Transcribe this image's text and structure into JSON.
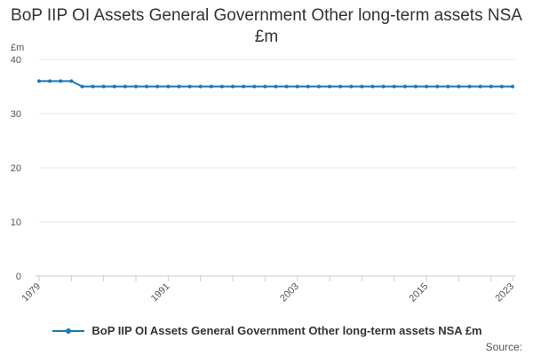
{
  "chart_data": {
    "type": "line",
    "title": "BoP IIP OI Assets General Government Other long-term assets NSA £m",
    "ylabel": "£m",
    "xlabel": "",
    "ylim": [
      0,
      40
    ],
    "yticks": [
      0,
      10,
      20,
      30,
      40
    ],
    "xlim": [
      1979,
      2023
    ],
    "xticks": [
      1979,
      1991,
      2003,
      2015,
      2023
    ],
    "grid": true,
    "legend_position": "bottom",
    "series": [
      {
        "name": "BoP IIP OI Assets General Government Other long-term assets NSA £m",
        "color": "#1a7ab5",
        "x": [
          1979,
          1980,
          1981,
          1982,
          1983,
          1984,
          1985,
          1986,
          1987,
          1988,
          1989,
          1990,
          1991,
          1992,
          1993,
          1994,
          1995,
          1996,
          1997,
          1998,
          1999,
          2000,
          2001,
          2002,
          2003,
          2004,
          2005,
          2006,
          2007,
          2008,
          2009,
          2010,
          2011,
          2012,
          2013,
          2014,
          2015,
          2016,
          2017,
          2018,
          2019,
          2020,
          2021,
          2022,
          2023
        ],
        "values": [
          36,
          36,
          36,
          36,
          35,
          35,
          35,
          35,
          35,
          35,
          35,
          35,
          35,
          35,
          35,
          35,
          35,
          35,
          35,
          35,
          35,
          35,
          35,
          35,
          35,
          35,
          35,
          35,
          35,
          35,
          35,
          35,
          35,
          35,
          35,
          35,
          35,
          35,
          35,
          35,
          35,
          35,
          35,
          35,
          35
        ]
      }
    ]
  },
  "source_label": "Source:"
}
